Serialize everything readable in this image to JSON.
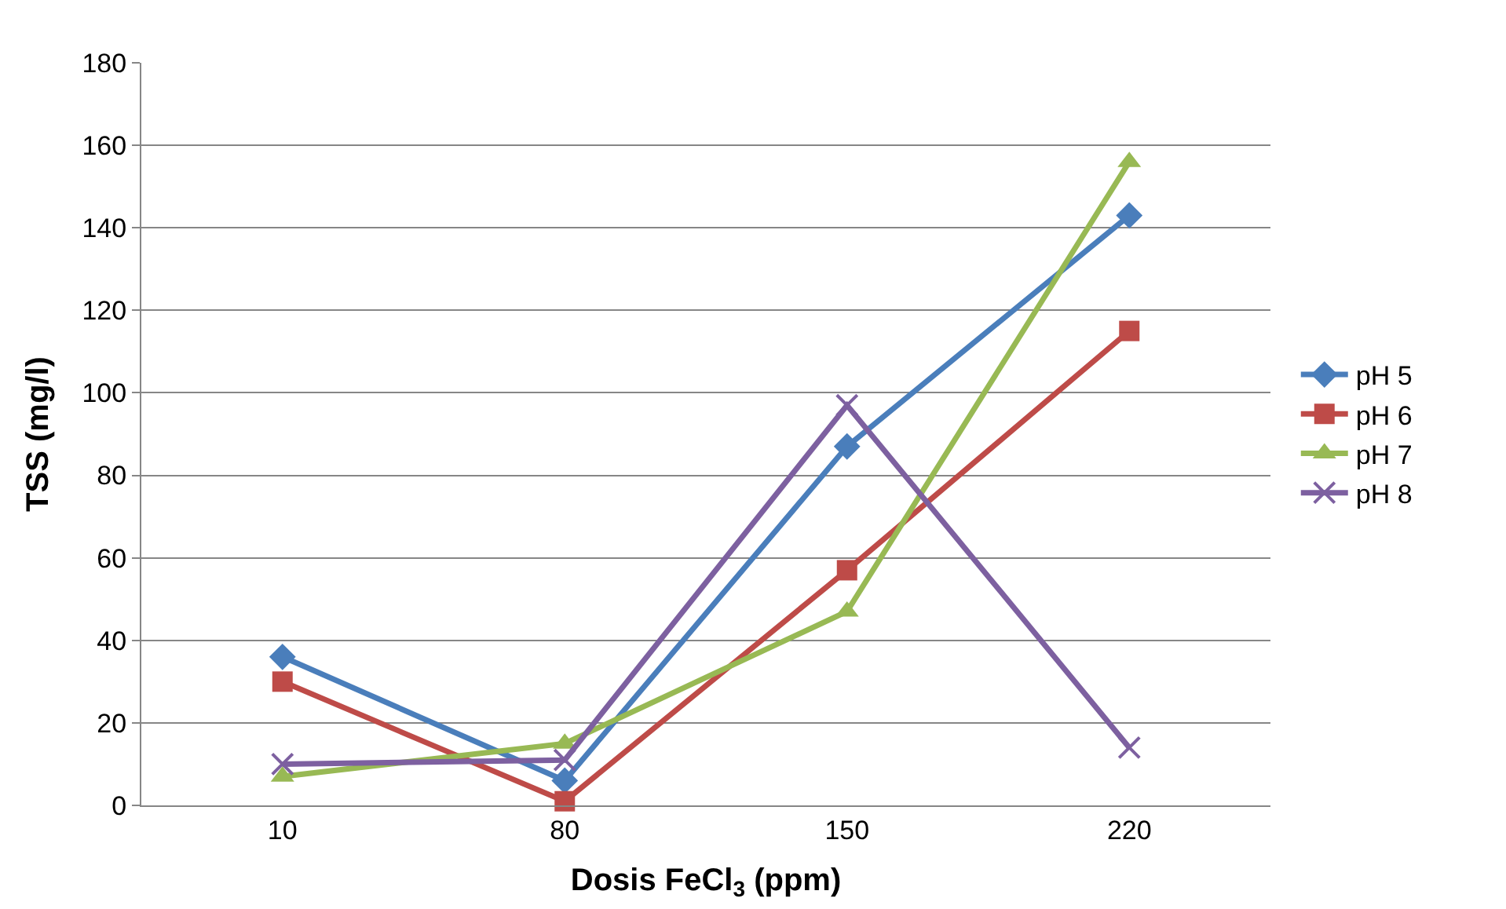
{
  "chart_data": {
    "type": "line",
    "xlabel": "Dosis FeCl$_{3}$ (ppm)",
    "ylabel": "TSS (mg/l)",
    "categories": [
      "10",
      "80",
      "150",
      "220"
    ],
    "series": [
      {
        "name": "pH 5",
        "color": "#4a7ebb",
        "marker": "diamond",
        "values": [
          36,
          6,
          87,
          143
        ]
      },
      {
        "name": "pH 6",
        "color": "#be4b48",
        "marker": "square",
        "values": [
          30,
          1,
          57,
          115
        ]
      },
      {
        "name": "pH 7",
        "color": "#98b954",
        "marker": "triangle",
        "values": [
          7,
          15,
          47,
          156
        ]
      },
      {
        "name": "pH 8",
        "color": "#7d60a0",
        "marker": "cross",
        "values": [
          10,
          11,
          97,
          14
        ]
      }
    ],
    "ylim": [
      0,
      180
    ],
    "yticks": [
      0,
      20,
      40,
      60,
      80,
      100,
      120,
      140,
      160,
      180
    ],
    "grid": "y",
    "legend": "right",
    "line_style": "solid"
  }
}
